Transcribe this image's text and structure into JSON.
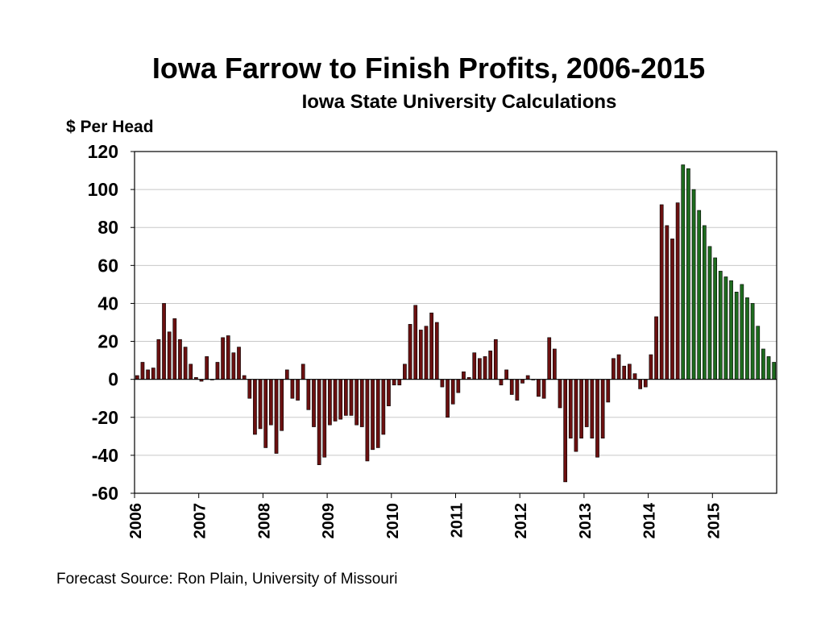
{
  "chart_data": {
    "type": "bar",
    "title": "Iowa Farrow to Finish Profits, 2006-2015",
    "subtitle": "Iowa State University Calculations",
    "ylabel": "$ Per Head",
    "source": "Forecast Source:  Ron Plain, University of Missouri",
    "ylim": [
      -60,
      120
    ],
    "yticks": [
      120,
      100,
      80,
      60,
      40,
      20,
      0,
      -20,
      -40,
      -60
    ],
    "xtick_labels": [
      "2006",
      "2007",
      "2008",
      "2009",
      "2010",
      "2011",
      "2012",
      "2013",
      "2014",
      "2015"
    ],
    "months_per_year": 12,
    "grid": true,
    "colors": {
      "actual": "#6b1010",
      "forecast": "#1e6b1e"
    },
    "series": [
      {
        "values": [
          2,
          9,
          5,
          6,
          21,
          40,
          25,
          32,
          21,
          17,
          8,
          1,
          -1,
          12,
          0,
          9,
          22,
          23,
          14,
          17,
          2,
          -10,
          -29,
          -26,
          -36,
          -24,
          -39,
          -27,
          5,
          -10,
          -11,
          8,
          -16,
          -25,
          -45,
          -41,
          -24,
          -22,
          -21,
          -19,
          -19,
          -24,
          -25,
          -43,
          -37,
          -36,
          -29,
          -14,
          -3,
          -3,
          8,
          29,
          39,
          26,
          28,
          35,
          30,
          -4,
          -20,
          -13,
          -7,
          4,
          1,
          14,
          11,
          12,
          15,
          21,
          -3,
          5,
          -8,
          -11,
          -2,
          2,
          0,
          -9,
          -10,
          22,
          16,
          -15,
          -54,
          -31,
          -38,
          -31,
          -25,
          -31,
          -41,
          -31,
          -12,
          11,
          13,
          7,
          8,
          3,
          -5,
          -4,
          13,
          33,
          92,
          81,
          74,
          93
        ]
      },
      {
        "values": [
          113,
          111,
          100,
          89,
          81,
          70,
          64,
          57,
          54,
          52,
          46,
          50,
          43,
          40,
          28,
          16,
          12,
          9
        ]
      }
    ]
  },
  "footnote": "Forecast Source:  Ron Plain, University of Missouri"
}
